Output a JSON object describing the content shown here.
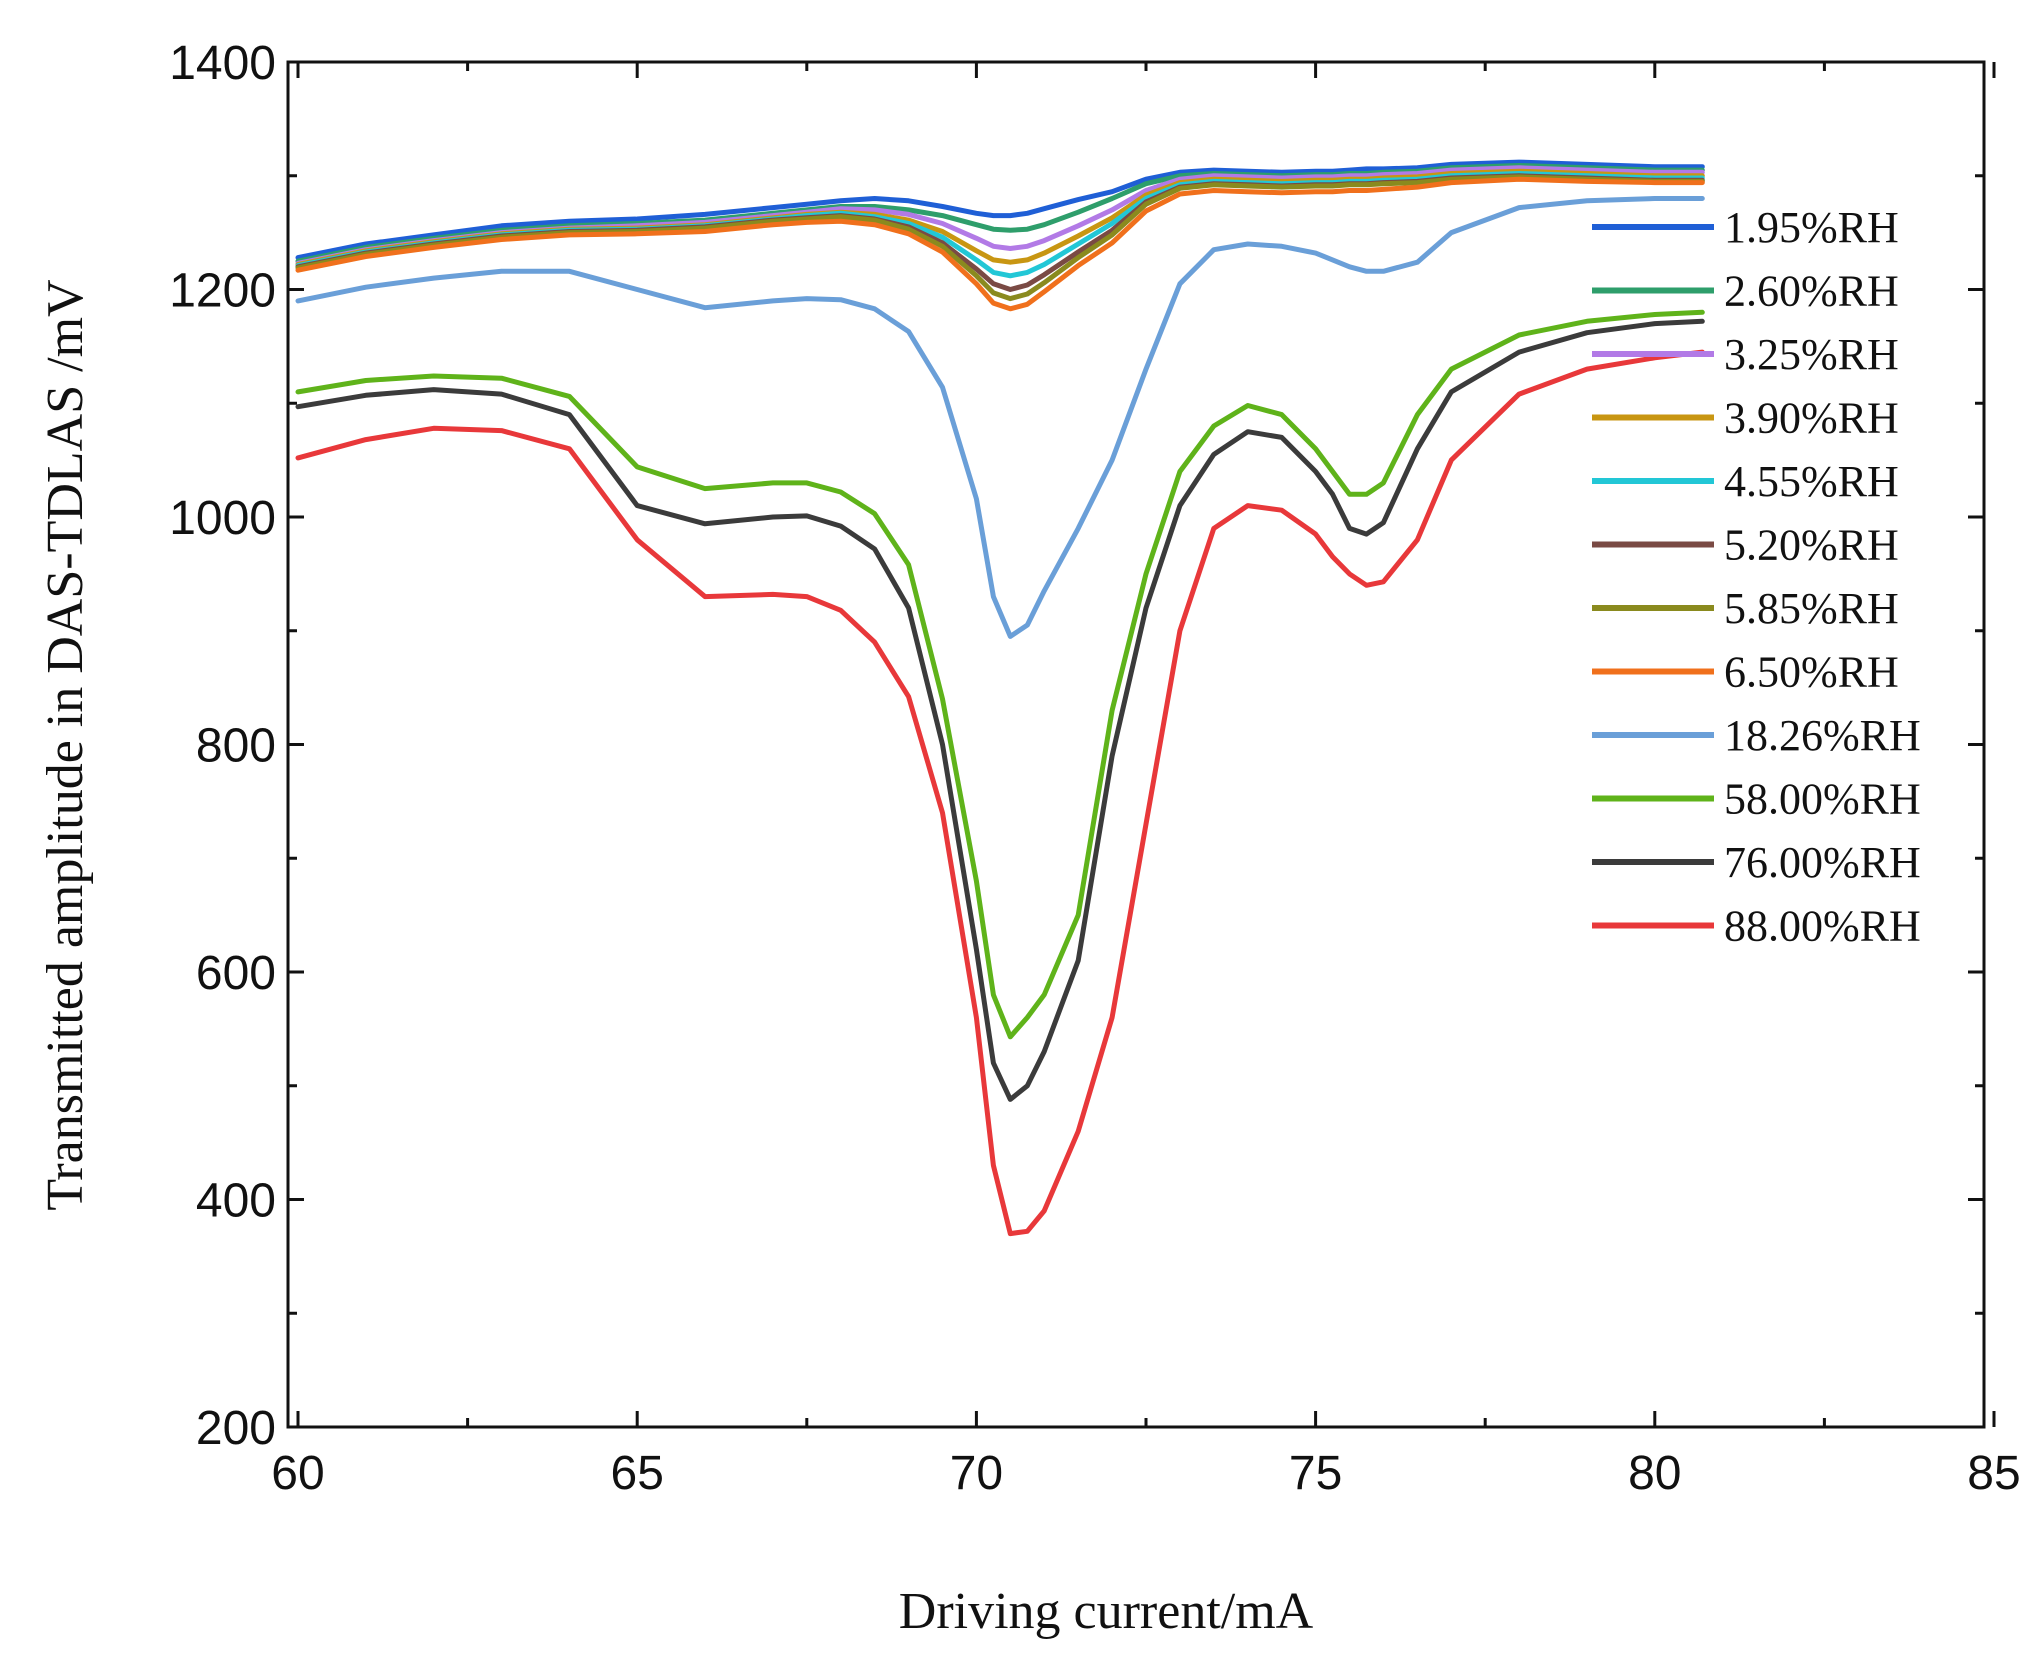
{
  "chart_data": {
    "type": "line",
    "title": "",
    "xlabel": "Driving current/mA",
    "ylabel": "Transmitted amplitude in DAS-TDLAS /mV",
    "xlim": [
      60,
      85
    ],
    "ylim": [
      200,
      1400
    ],
    "x_ticks": [
      60,
      65,
      70,
      75,
      80,
      85
    ],
    "y_ticks": [
      200,
      400,
      600,
      800,
      1000,
      1200,
      1400
    ],
    "grid": false,
    "legend_position": "right",
    "x": [
      60,
      61,
      62,
      63,
      64,
      65,
      66,
      67,
      67.5,
      68,
      68.5,
      69,
      69.5,
      70,
      70.25,
      70.5,
      70.75,
      71,
      71.5,
      72,
      72.5,
      73,
      73.5,
      74,
      74.5,
      75,
      75.25,
      75.5,
      75.75,
      76,
      76.5,
      77,
      78,
      79,
      80,
      80.7
    ],
    "series": [
      {
        "name": "1.95%RH",
        "color": "#1f5fd6",
        "values": [
          1228,
          1240,
          1248,
          1256,
          1260,
          1262,
          1266,
          1272,
          1275,
          1278,
          1280,
          1278,
          1273,
          1267,
          1265,
          1265,
          1267,
          1271,
          1279,
          1286,
          1297,
          1303,
          1305,
          1304,
          1303,
          1304,
          1304,
          1305,
          1306,
          1306,
          1307,
          1310,
          1312,
          1310,
          1308,
          1308
        ]
      },
      {
        "name": "2.60%RH",
        "color": "#2e9e6b",
        "values": [
          1225,
          1237,
          1245,
          1252,
          1256,
          1258,
          1261,
          1267,
          1270,
          1273,
          1273,
          1270,
          1265,
          1257,
          1253,
          1252,
          1253,
          1257,
          1268,
          1280,
          1293,
          1300,
          1302,
          1301,
          1300,
          1301,
          1301,
          1302,
          1302,
          1303,
          1304,
          1307,
          1309,
          1307,
          1305,
          1305
        ]
      },
      {
        "name": "3.25%RH",
        "color": "#b27ae6",
        "values": [
          1223,
          1235,
          1243,
          1250,
          1254,
          1256,
          1259,
          1265,
          1268,
          1271,
          1270,
          1266,
          1258,
          1245,
          1238,
          1236,
          1238,
          1243,
          1256,
          1270,
          1287,
          1297,
          1300,
          1299,
          1298,
          1299,
          1299,
          1300,
          1300,
          1301,
          1302,
          1305,
          1307,
          1305,
          1303,
          1303
        ]
      },
      {
        "name": "3.90%RH",
        "color": "#c89612",
        "values": [
          1222,
          1234,
          1242,
          1249,
          1253,
          1254,
          1257,
          1263,
          1266,
          1268,
          1266,
          1261,
          1251,
          1234,
          1226,
          1224,
          1226,
          1232,
          1247,
          1263,
          1283,
          1294,
          1297,
          1296,
          1295,
          1296,
          1296,
          1297,
          1297,
          1298,
          1299,
          1302,
          1304,
          1302,
          1300,
          1300
        ]
      },
      {
        "name": "4.55%RH",
        "color": "#22c7d6",
        "values": [
          1221,
          1233,
          1241,
          1248,
          1252,
          1253,
          1256,
          1262,
          1265,
          1267,
          1264,
          1258,
          1246,
          1226,
          1215,
          1212,
          1215,
          1222,
          1240,
          1258,
          1280,
          1292,
          1295,
          1294,
          1293,
          1294,
          1294,
          1295,
          1295,
          1296,
          1297,
          1300,
          1302,
          1300,
          1298,
          1298
        ]
      },
      {
        "name": "5.20%RH",
        "color": "#7a4a44",
        "values": [
          1220,
          1232,
          1240,
          1247,
          1251,
          1252,
          1255,
          1261,
          1263,
          1265,
          1262,
          1255,
          1241,
          1218,
          1205,
          1200,
          1204,
          1213,
          1233,
          1252,
          1277,
          1290,
          1293,
          1292,
          1291,
          1292,
          1292,
          1293,
          1293,
          1294,
          1295,
          1298,
          1300,
          1298,
          1296,
          1296
        ]
      },
      {
        "name": "5.85%RH",
        "color": "#8a8a1e",
        "values": [
          1219,
          1231,
          1239,
          1246,
          1250,
          1251,
          1254,
          1260,
          1262,
          1264,
          1261,
          1253,
          1238,
          1212,
          1197,
          1192,
          1196,
          1206,
          1228,
          1248,
          1275,
          1289,
          1292,
          1291,
          1290,
          1291,
          1291,
          1292,
          1292,
          1293,
          1294,
          1297,
          1299,
          1297,
          1295,
          1295
        ]
      },
      {
        "name": "6.50%RH",
        "color": "#f0701c",
        "values": [
          1217,
          1229,
          1237,
          1244,
          1248,
          1249,
          1251,
          1257,
          1259,
          1260,
          1257,
          1249,
          1233,
          1205,
          1188,
          1183,
          1187,
          1198,
          1221,
          1241,
          1269,
          1284,
          1287,
          1286,
          1285,
          1286,
          1286,
          1287,
          1287,
          1288,
          1290,
          1294,
          1297,
          1295,
          1294,
          1294
        ]
      },
      {
        "name": "18.26%RH",
        "color": "#6a9fd8",
        "values": [
          1190,
          1202,
          1210,
          1216,
          1216,
          1200,
          1184,
          1190,
          1192,
          1191,
          1183,
          1163,
          1114,
          1016,
          930,
          895,
          905,
          935,
          990,
          1050,
          1130,
          1205,
          1235,
          1240,
          1238,
          1232,
          1226,
          1220,
          1216,
          1216,
          1224,
          1250,
          1272,
          1278,
          1280,
          1280
        ]
      },
      {
        "name": "58.00%RH",
        "color": "#5fb31a",
        "values": [
          1110,
          1120,
          1124,
          1122,
          1106,
          1044,
          1025,
          1030,
          1030,
          1022,
          1003,
          958,
          840,
          680,
          580,
          543,
          560,
          580,
          650,
          830,
          950,
          1040,
          1080,
          1098,
          1090,
          1060,
          1040,
          1020,
          1020,
          1030,
          1090,
          1130,
          1160,
          1172,
          1178,
          1180
        ]
      },
      {
        "name": "76.00%RH",
        "color": "#3b3b3b",
        "values": [
          1097,
          1107,
          1112,
          1108,
          1090,
          1010,
          994,
          1000,
          1001,
          992,
          972,
          920,
          800,
          620,
          520,
          488,
          500,
          530,
          610,
          790,
          920,
          1010,
          1055,
          1075,
          1070,
          1040,
          1020,
          990,
          985,
          995,
          1060,
          1110,
          1145,
          1162,
          1170,
          1172
        ]
      },
      {
        "name": "88.00%RH",
        "color": "#e8383a",
        "values": [
          1052,
          1068,
          1078,
          1076,
          1060,
          980,
          930,
          932,
          930,
          918,
          890,
          842,
          740,
          560,
          430,
          370,
          372,
          390,
          460,
          560,
          730,
          900,
          990,
          1010,
          1006,
          985,
          965,
          950,
          940,
          943,
          980,
          1050,
          1108,
          1130,
          1140,
          1145
        ]
      }
    ]
  }
}
